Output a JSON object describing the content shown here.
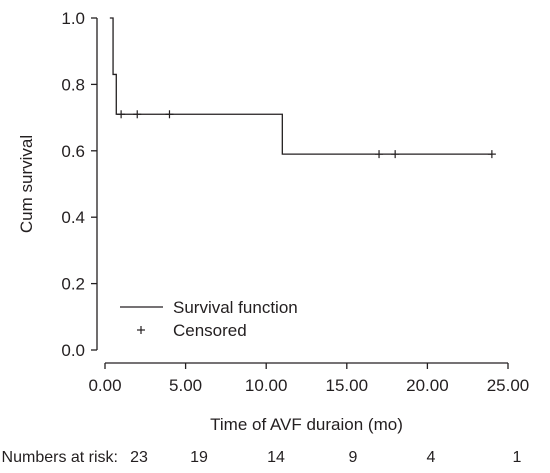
{
  "chart_data": {
    "type": "line",
    "title": "",
    "xlabel": "Time of AVF duraion (mo)",
    "ylabel": "Cum survival",
    "xlim": [
      0,
      25
    ],
    "ylim": [
      0,
      1
    ],
    "x_ticks": [
      0,
      5,
      10,
      15,
      20,
      25
    ],
    "x_tick_labels": [
      "0.00",
      "5.00",
      "10.00",
      "15.00",
      "20.00",
      "25.00"
    ],
    "y_ticks": [
      0,
      0.2,
      0.4,
      0.6,
      0.8,
      1.0
    ],
    "y_tick_labels": [
      "0.0",
      "0.2",
      "0.4",
      "0.6",
      "0.8",
      "1.0"
    ],
    "grid": false,
    "legend_position": "bottom-left",
    "series": [
      {
        "name": "Survival function",
        "style": "step",
        "x": [
          0.3,
          0.5,
          0.7,
          11.0,
          24.0
        ],
        "y": [
          1.0,
          0.83,
          0.71,
          0.59,
          0.59
        ]
      },
      {
        "name": "Censored",
        "style": "marker",
        "x": [
          1.0,
          2.0,
          4.0,
          17.0,
          18.0,
          24.0
        ],
        "y": [
          0.71,
          0.71,
          0.71,
          0.59,
          0.59,
          0.59
        ]
      }
    ],
    "risk_table": {
      "label": "Numbers at risk:",
      "values": [
        "23",
        "19",
        "14",
        "9",
        "4",
        "1"
      ]
    }
  },
  "colors": {
    "line": "#231f20"
  }
}
